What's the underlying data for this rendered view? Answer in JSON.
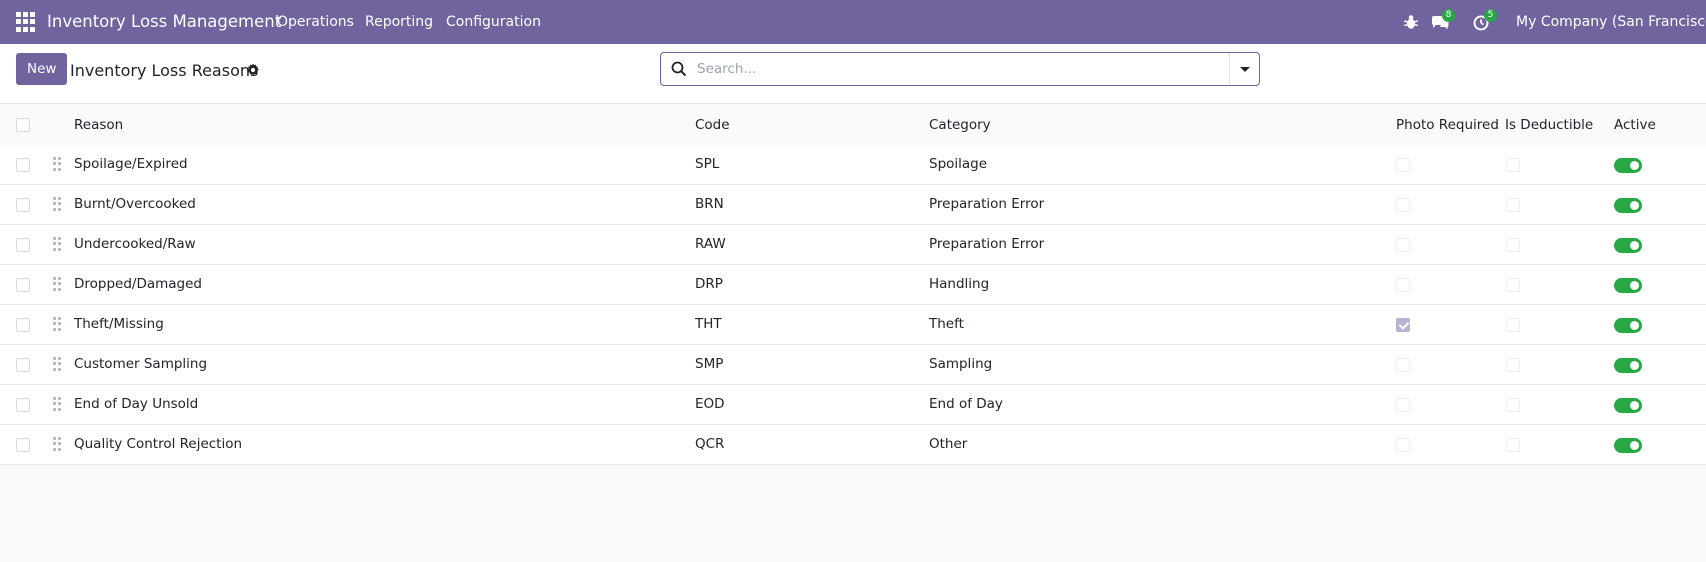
{
  "navbar": {
    "app_title": "Inventory Loss Management",
    "menu": [
      "Operations",
      "Reporting",
      "Configuration"
    ],
    "messages_count": "8",
    "activities_count": "5",
    "company": "My Company (San Francisco)"
  },
  "control_panel": {
    "new_label": "New",
    "title": "Inventory Loss Reasons",
    "search_placeholder": "Search..."
  },
  "columns": {
    "reason": "Reason",
    "code": "Code",
    "category": "Category",
    "photo_required": "Photo Required",
    "is_deductible": "Is Deductible",
    "active": "Active"
  },
  "rows": [
    {
      "reason": "Spoilage/Expired",
      "code": "SPL",
      "category": "Spoilage",
      "photo_required": false,
      "is_deductible": false,
      "active": true
    },
    {
      "reason": "Burnt/Overcooked",
      "code": "BRN",
      "category": "Preparation Error",
      "photo_required": false,
      "is_deductible": false,
      "active": true
    },
    {
      "reason": "Undercooked/Raw",
      "code": "RAW",
      "category": "Preparation Error",
      "photo_required": false,
      "is_deductible": false,
      "active": true
    },
    {
      "reason": "Dropped/Damaged",
      "code": "DRP",
      "category": "Handling",
      "photo_required": false,
      "is_deductible": false,
      "active": true
    },
    {
      "reason": "Theft/Missing",
      "code": "THT",
      "category": "Theft",
      "photo_required": true,
      "is_deductible": false,
      "active": true
    },
    {
      "reason": "Customer Sampling",
      "code": "SMP",
      "category": "Sampling",
      "photo_required": false,
      "is_deductible": false,
      "active": true
    },
    {
      "reason": "End of Day Unsold",
      "code": "EOD",
      "category": "End of Day",
      "photo_required": false,
      "is_deductible": false,
      "active": true
    },
    {
      "reason": "Quality Control Rejection",
      "code": "QCR",
      "category": "Other",
      "photo_required": false,
      "is_deductible": false,
      "active": true
    }
  ],
  "colors": {
    "brand": "#71639e",
    "active_toggle": "#28a745",
    "badge": "#28a745"
  },
  "icons": [
    "apps-grid-icon",
    "bug-icon",
    "chat-icon",
    "clock-icon",
    "gear-icon",
    "search-icon",
    "caret-down-icon",
    "drag-handle-icon"
  ]
}
